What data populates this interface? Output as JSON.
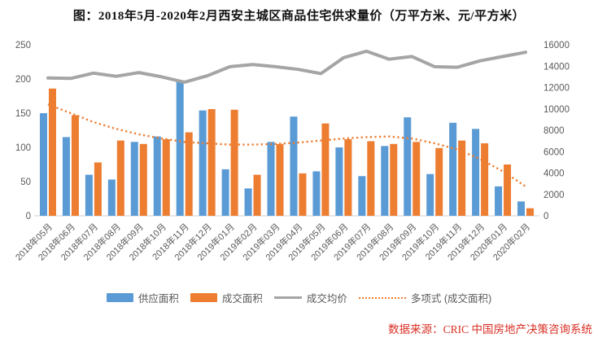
{
  "title": "图：2018年5月-2020年2月西安主城区商品住宅供求量价（万平方米、元/平方米）",
  "footer": {
    "text": "数据来源：CRIC 中国房地产决策咨询系统"
  },
  "legend": {
    "supply": "供应面积",
    "transaction": "成交面积",
    "price": "成交均价",
    "trend": "多项式 (成交面积)"
  },
  "colors": {
    "supply": "#5B9BD5",
    "transaction": "#ED7D31",
    "price": "#A5A5A5",
    "trend": "#ED7D31",
    "axis_text": "#595959",
    "baseline": "#D9D9D9",
    "title_text": "#111111",
    "footer_text": "#D93026"
  },
  "chart_data": {
    "type": "bar",
    "subtype": "combo-bar-line-dual-axis",
    "title": "图：2018年5月-2020年2月西安主城区商品住宅供求量价（万平方米、元/平方米）",
    "xlabel": "",
    "ylabel_left": "万平方米",
    "ylabel_right": "元/平方米",
    "grid": false,
    "legend_position": "bottom",
    "categories": [
      "2018年05月",
      "2018年06月",
      "2018年07月",
      "2018年08月",
      "2018年09月",
      "2018年10月",
      "2018年11月",
      "2018年12月",
      "2019年01月",
      "2019年02月",
      "2019年03月",
      "2019年04月",
      "2019年05月",
      "2019年06月",
      "2019年07月",
      "2019年08月",
      "2019年09月",
      "2019年10月",
      "2019年11月",
      "2019年12月",
      "2020年01月",
      "2020年02月"
    ],
    "series": [
      {
        "name": "供应面积",
        "type": "bar",
        "axis": "left",
        "color": "#5B9BD5",
        "values": [
          150,
          115,
          60,
          53,
          108,
          116,
          198,
          154,
          68,
          40,
          108,
          145,
          65,
          100,
          58,
          102,
          144,
          61,
          136,
          127,
          43,
          21
        ]
      },
      {
        "name": "成交面积",
        "type": "bar",
        "axis": "left",
        "color": "#ED7D31",
        "values": [
          186,
          147,
          78,
          110,
          105,
          112,
          122,
          156,
          155,
          60,
          105,
          62,
          135,
          112,
          109,
          105,
          108,
          99,
          110,
          106,
          75,
          11
        ]
      },
      {
        "name": "成交均价",
        "type": "line",
        "axis": "right",
        "color": "#A5A5A5",
        "values": [
          12900,
          12850,
          13350,
          13050,
          13400,
          13000,
          12500,
          13100,
          13950,
          14150,
          13950,
          13700,
          13300,
          14800,
          15400,
          14650,
          14900,
          13950,
          13900,
          14500,
          14900,
          15300
        ]
      },
      {
        "name": "多项式 (成交面积)",
        "type": "dotted-line",
        "axis": "left",
        "color": "#ED7D31",
        "values": [
          163,
          150,
          137,
          127,
          119,
          113,
          108,
          106,
          104,
          104,
          105,
          107,
          110,
          113,
          115,
          116,
          113,
          106,
          97,
          83,
          65,
          43
        ]
      }
    ],
    "left_axis": {
      "min": 0,
      "max": 250,
      "ticks": [
        0,
        50,
        100,
        150,
        200,
        250
      ]
    },
    "right_axis": {
      "min": 0,
      "max": 16000,
      "ticks": [
        0,
        2000,
        4000,
        6000,
        8000,
        10000,
        12000,
        14000,
        16000
      ]
    }
  }
}
